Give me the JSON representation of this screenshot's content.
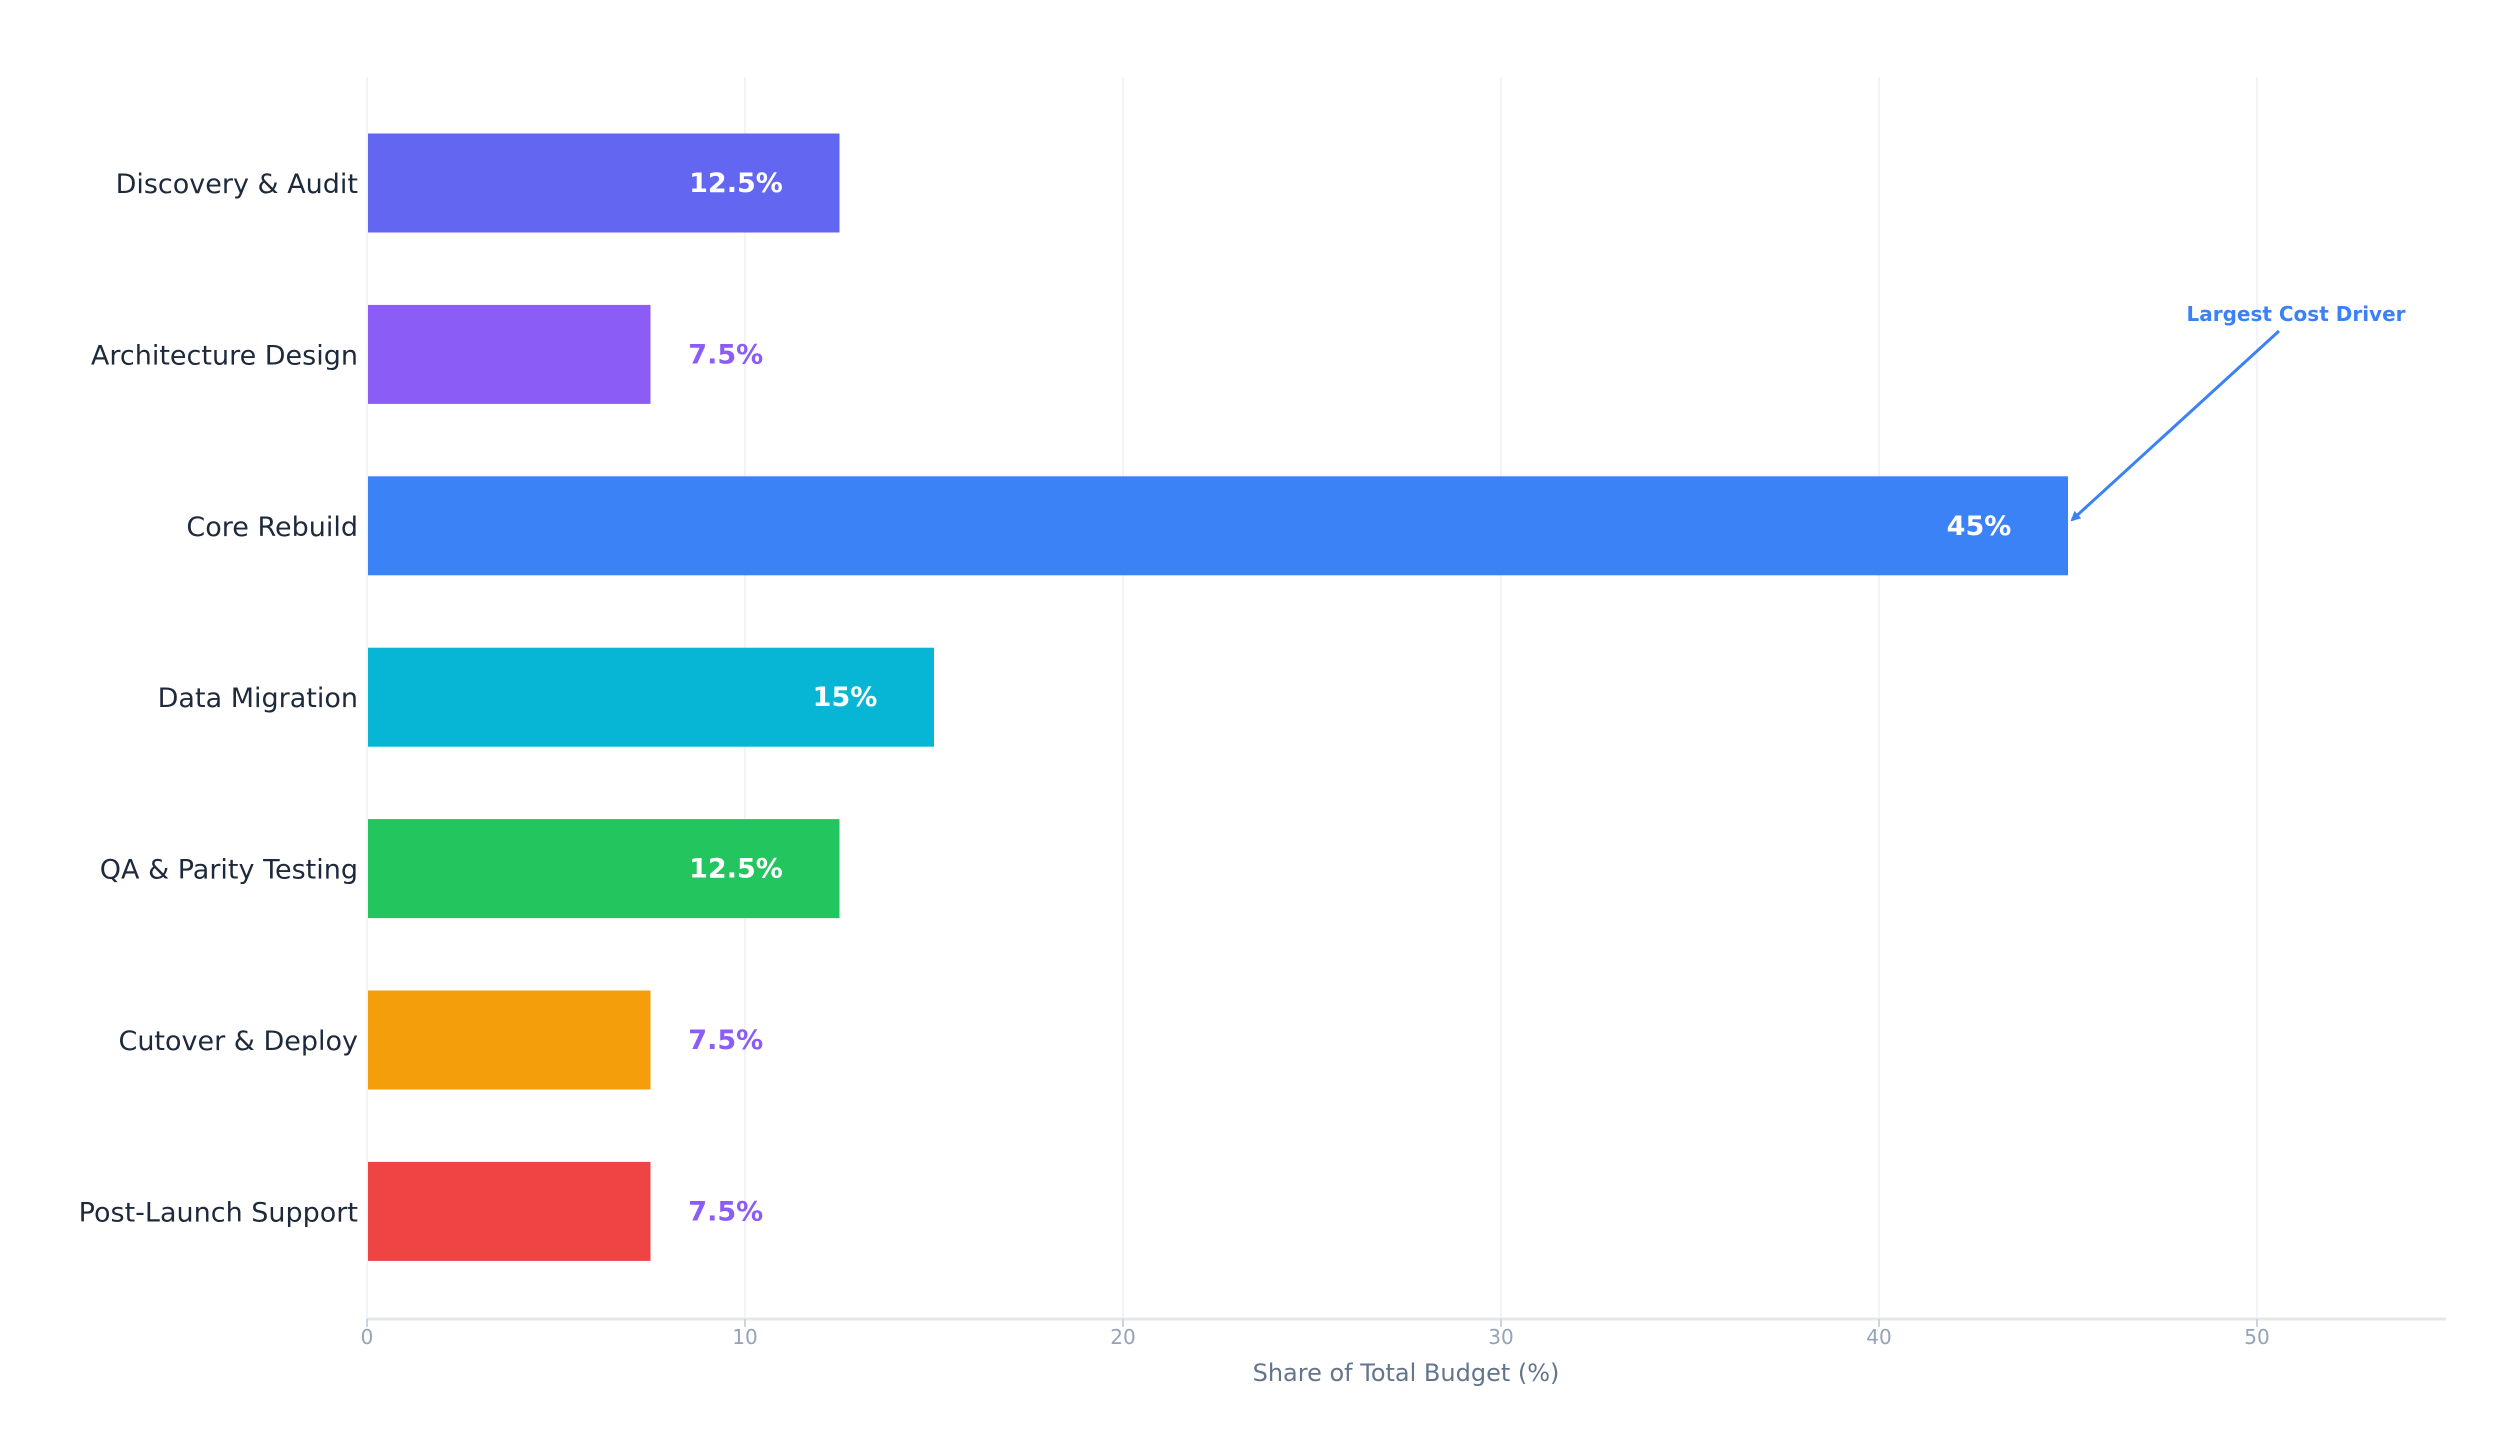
{
  "chart_data": {
    "type": "bar",
    "orientation": "horizontal",
    "categories": [
      "Discovery & Audit",
      "Architecture Design",
      "Core Rebuild",
      "Data Migration",
      "QA & Parity Testing",
      "Cutover & Deploy",
      "Post-Launch Support"
    ],
    "values": [
      12.5,
      7.5,
      45,
      15,
      12.5,
      7.5,
      7.5
    ],
    "value_labels": [
      "12.5%",
      "7.5%",
      "45%",
      "15%",
      "12.5%",
      "7.5%",
      "7.5%"
    ],
    "colors": [
      "#6366f1",
      "#8b5cf6",
      "#3b82f6",
      "#06b6d4",
      "#22c55e",
      "#f59e0b",
      "#ef4444"
    ],
    "outside_label_color": "#8b5cf6",
    "title": "",
    "xlabel": "Share of Total Budget (%)",
    "ylabel": "",
    "xlim": [
      0,
      55
    ],
    "xticks": [
      0,
      10,
      20,
      30,
      40,
      50
    ],
    "xtick_labels": [
      "0",
      "10",
      "20",
      "30",
      "40",
      "50"
    ],
    "grid": "vertical",
    "annotation": {
      "text": "Largest Cost Driver",
      "target_category": "Core Rebuild",
      "target_value": 45,
      "color": "#3b82f6"
    }
  }
}
